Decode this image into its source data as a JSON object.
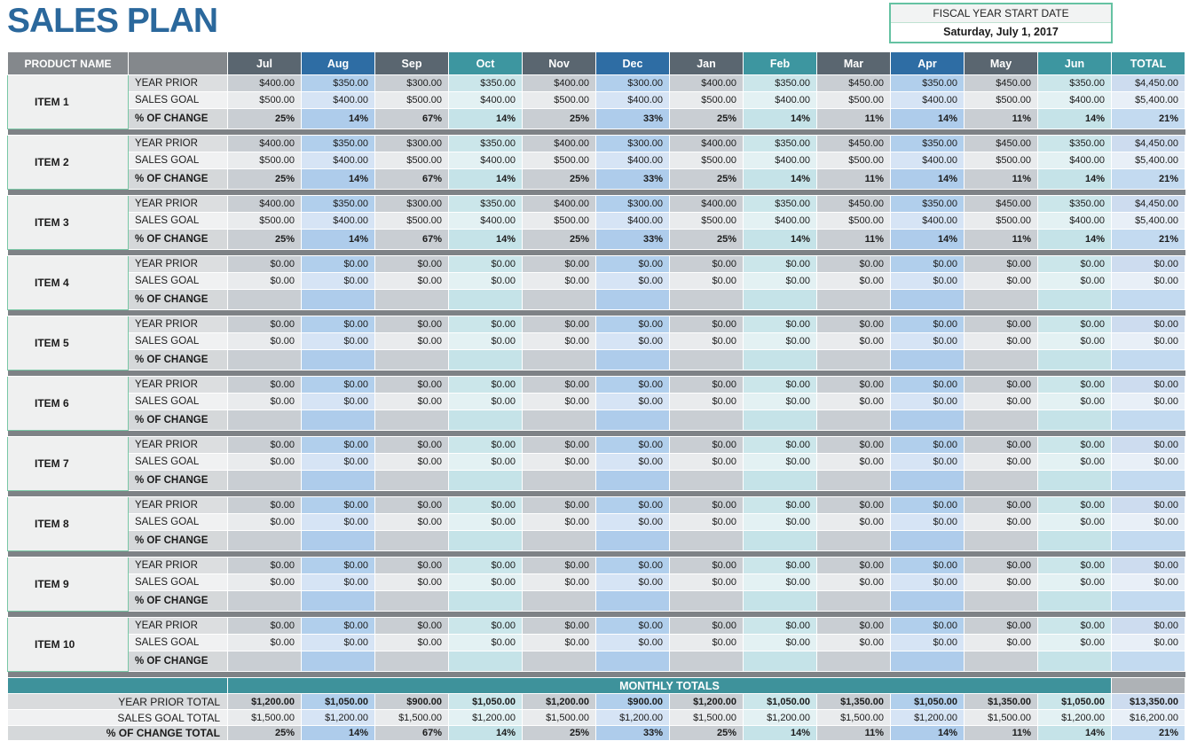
{
  "page": {
    "title": "SALES PLAN"
  },
  "fiscal": {
    "label": "FISCAL YEAR START DATE",
    "value": "Saturday, July 1, 2017"
  },
  "colors": {
    "title_blue": "#2B689C",
    "month_header_gray": "#5A6670",
    "month_header_blue": "#2E6DA4",
    "month_header_teal": "#3D96A0",
    "separator_gray": "#7E8286",
    "monthly_totals_bar_teal": "#3E929B",
    "fiscal_box_border_green": "#65C2A2"
  },
  "table": {
    "product_header": "PRODUCT NAME",
    "total_header": "TOTAL",
    "months": [
      "Jul",
      "Aug",
      "Sep",
      "Oct",
      "Nov",
      "Dec",
      "Jan",
      "Feb",
      "Mar",
      "Apr",
      "May",
      "Jun"
    ],
    "month_styles": [
      "gray",
      "blue",
      "gray",
      "teal",
      "gray",
      "blue",
      "gray",
      "teal",
      "gray",
      "blue",
      "gray",
      "teal"
    ],
    "row_labels": {
      "year_prior": "YEAR PRIOR",
      "sales_goal": "SALES GOAL",
      "pct_change": "% OF CHANGE"
    },
    "items": [
      {
        "name": "ITEM 1",
        "year_prior": [
          "$400.00",
          "$350.00",
          "$300.00",
          "$350.00",
          "$400.00",
          "$300.00",
          "$400.00",
          "$350.00",
          "$450.00",
          "$350.00",
          "$450.00",
          "$350.00"
        ],
        "sales_goal": [
          "$500.00",
          "$400.00",
          "$500.00",
          "$400.00",
          "$500.00",
          "$400.00",
          "$500.00",
          "$400.00",
          "$500.00",
          "$400.00",
          "$500.00",
          "$400.00"
        ],
        "pct_change": [
          "25%",
          "14%",
          "67%",
          "14%",
          "25%",
          "33%",
          "25%",
          "14%",
          "11%",
          "14%",
          "11%",
          "14%"
        ],
        "total_year_prior": "$4,450.00",
        "total_sales_goal": "$5,400.00",
        "total_pct_change": "21%"
      },
      {
        "name": "ITEM 2",
        "year_prior": [
          "$400.00",
          "$350.00",
          "$300.00",
          "$350.00",
          "$400.00",
          "$300.00",
          "$400.00",
          "$350.00",
          "$450.00",
          "$350.00",
          "$450.00",
          "$350.00"
        ],
        "sales_goal": [
          "$500.00",
          "$400.00",
          "$500.00",
          "$400.00",
          "$500.00",
          "$400.00",
          "$500.00",
          "$400.00",
          "$500.00",
          "$400.00",
          "$500.00",
          "$400.00"
        ],
        "pct_change": [
          "25%",
          "14%",
          "67%",
          "14%",
          "25%",
          "33%",
          "25%",
          "14%",
          "11%",
          "14%",
          "11%",
          "14%"
        ],
        "total_year_prior": "$4,450.00",
        "total_sales_goal": "$5,400.00",
        "total_pct_change": "21%"
      },
      {
        "name": "ITEM 3",
        "year_prior": [
          "$400.00",
          "$350.00",
          "$300.00",
          "$350.00",
          "$400.00",
          "$300.00",
          "$400.00",
          "$350.00",
          "$450.00",
          "$350.00",
          "$450.00",
          "$350.00"
        ],
        "sales_goal": [
          "$500.00",
          "$400.00",
          "$500.00",
          "$400.00",
          "$500.00",
          "$400.00",
          "$500.00",
          "$400.00",
          "$500.00",
          "$400.00",
          "$500.00",
          "$400.00"
        ],
        "pct_change": [
          "25%",
          "14%",
          "67%",
          "14%",
          "25%",
          "33%",
          "25%",
          "14%",
          "11%",
          "14%",
          "11%",
          "14%"
        ],
        "total_year_prior": "$4,450.00",
        "total_sales_goal": "$5,400.00",
        "total_pct_change": "21%"
      },
      {
        "name": "ITEM 4",
        "year_prior": [
          "$0.00",
          "$0.00",
          "$0.00",
          "$0.00",
          "$0.00",
          "$0.00",
          "$0.00",
          "$0.00",
          "$0.00",
          "$0.00",
          "$0.00",
          "$0.00"
        ],
        "sales_goal": [
          "$0.00",
          "$0.00",
          "$0.00",
          "$0.00",
          "$0.00",
          "$0.00",
          "$0.00",
          "$0.00",
          "$0.00",
          "$0.00",
          "$0.00",
          "$0.00"
        ],
        "pct_change": [
          "",
          "",
          "",
          "",
          "",
          "",
          "",
          "",
          "",
          "",
          "",
          ""
        ],
        "total_year_prior": "$0.00",
        "total_sales_goal": "$0.00",
        "total_pct_change": ""
      },
      {
        "name": "ITEM 5",
        "year_prior": [
          "$0.00",
          "$0.00",
          "$0.00",
          "$0.00",
          "$0.00",
          "$0.00",
          "$0.00",
          "$0.00",
          "$0.00",
          "$0.00",
          "$0.00",
          "$0.00"
        ],
        "sales_goal": [
          "$0.00",
          "$0.00",
          "$0.00",
          "$0.00",
          "$0.00",
          "$0.00",
          "$0.00",
          "$0.00",
          "$0.00",
          "$0.00",
          "$0.00",
          "$0.00"
        ],
        "pct_change": [
          "",
          "",
          "",
          "",
          "",
          "",
          "",
          "",
          "",
          "",
          "",
          ""
        ],
        "total_year_prior": "$0.00",
        "total_sales_goal": "$0.00",
        "total_pct_change": ""
      },
      {
        "name": "ITEM 6",
        "year_prior": [
          "$0.00",
          "$0.00",
          "$0.00",
          "$0.00",
          "$0.00",
          "$0.00",
          "$0.00",
          "$0.00",
          "$0.00",
          "$0.00",
          "$0.00",
          "$0.00"
        ],
        "sales_goal": [
          "$0.00",
          "$0.00",
          "$0.00",
          "$0.00",
          "$0.00",
          "$0.00",
          "$0.00",
          "$0.00",
          "$0.00",
          "$0.00",
          "$0.00",
          "$0.00"
        ],
        "pct_change": [
          "",
          "",
          "",
          "",
          "",
          "",
          "",
          "",
          "",
          "",
          "",
          ""
        ],
        "total_year_prior": "$0.00",
        "total_sales_goal": "$0.00",
        "total_pct_change": ""
      },
      {
        "name": "ITEM 7",
        "year_prior": [
          "$0.00",
          "$0.00",
          "$0.00",
          "$0.00",
          "$0.00",
          "$0.00",
          "$0.00",
          "$0.00",
          "$0.00",
          "$0.00",
          "$0.00",
          "$0.00"
        ],
        "sales_goal": [
          "$0.00",
          "$0.00",
          "$0.00",
          "$0.00",
          "$0.00",
          "$0.00",
          "$0.00",
          "$0.00",
          "$0.00",
          "$0.00",
          "$0.00",
          "$0.00"
        ],
        "pct_change": [
          "",
          "",
          "",
          "",
          "",
          "",
          "",
          "",
          "",
          "",
          "",
          ""
        ],
        "total_year_prior": "$0.00",
        "total_sales_goal": "$0.00",
        "total_pct_change": ""
      },
      {
        "name": "ITEM 8",
        "year_prior": [
          "$0.00",
          "$0.00",
          "$0.00",
          "$0.00",
          "$0.00",
          "$0.00",
          "$0.00",
          "$0.00",
          "$0.00",
          "$0.00",
          "$0.00",
          "$0.00"
        ],
        "sales_goal": [
          "$0.00",
          "$0.00",
          "$0.00",
          "$0.00",
          "$0.00",
          "$0.00",
          "$0.00",
          "$0.00",
          "$0.00",
          "$0.00",
          "$0.00",
          "$0.00"
        ],
        "pct_change": [
          "",
          "",
          "",
          "",
          "",
          "",
          "",
          "",
          "",
          "",
          "",
          ""
        ],
        "total_year_prior": "$0.00",
        "total_sales_goal": "$0.00",
        "total_pct_change": ""
      },
      {
        "name": "ITEM 9",
        "year_prior": [
          "$0.00",
          "$0.00",
          "$0.00",
          "$0.00",
          "$0.00",
          "$0.00",
          "$0.00",
          "$0.00",
          "$0.00",
          "$0.00",
          "$0.00",
          "$0.00"
        ],
        "sales_goal": [
          "$0.00",
          "$0.00",
          "$0.00",
          "$0.00",
          "$0.00",
          "$0.00",
          "$0.00",
          "$0.00",
          "$0.00",
          "$0.00",
          "$0.00",
          "$0.00"
        ],
        "pct_change": [
          "",
          "",
          "",
          "",
          "",
          "",
          "",
          "",
          "",
          "",
          "",
          ""
        ],
        "total_year_prior": "$0.00",
        "total_sales_goal": "$0.00",
        "total_pct_change": ""
      },
      {
        "name": "ITEM 10",
        "year_prior": [
          "$0.00",
          "$0.00",
          "$0.00",
          "$0.00",
          "$0.00",
          "$0.00",
          "$0.00",
          "$0.00",
          "$0.00",
          "$0.00",
          "$0.00",
          "$0.00"
        ],
        "sales_goal": [
          "$0.00",
          "$0.00",
          "$0.00",
          "$0.00",
          "$0.00",
          "$0.00",
          "$0.00",
          "$0.00",
          "$0.00",
          "$0.00",
          "$0.00",
          "$0.00"
        ],
        "pct_change": [
          "",
          "",
          "",
          "",
          "",
          "",
          "",
          "",
          "",
          "",
          "",
          ""
        ],
        "total_year_prior": "$0.00",
        "total_sales_goal": "$0.00",
        "total_pct_change": ""
      }
    ],
    "totals": {
      "header": "MONTHLY TOTALS",
      "year_prior_label": "YEAR PRIOR TOTAL",
      "sales_goal_label": "SALES GOAL TOTAL",
      "pct_change_label": "% OF CHANGE TOTAL",
      "year_prior": [
        "$1,200.00",
        "$1,050.00",
        "$900.00",
        "$1,050.00",
        "$1,200.00",
        "$900.00",
        "$1,200.00",
        "$1,050.00",
        "$1,350.00",
        "$1,050.00",
        "$1,350.00",
        "$1,050.00"
      ],
      "year_prior_total": "$13,350.00",
      "sales_goal": [
        "$1,500.00",
        "$1,200.00",
        "$1,500.00",
        "$1,200.00",
        "$1,500.00",
        "$1,200.00",
        "$1,500.00",
        "$1,200.00",
        "$1,500.00",
        "$1,200.00",
        "$1,500.00",
        "$1,200.00"
      ],
      "sales_goal_total": "$16,200.00",
      "pct_change": [
        "25%",
        "14%",
        "67%",
        "14%",
        "25%",
        "33%",
        "25%",
        "14%",
        "11%",
        "14%",
        "11%",
        "14%"
      ],
      "pct_change_total": "21%"
    }
  }
}
